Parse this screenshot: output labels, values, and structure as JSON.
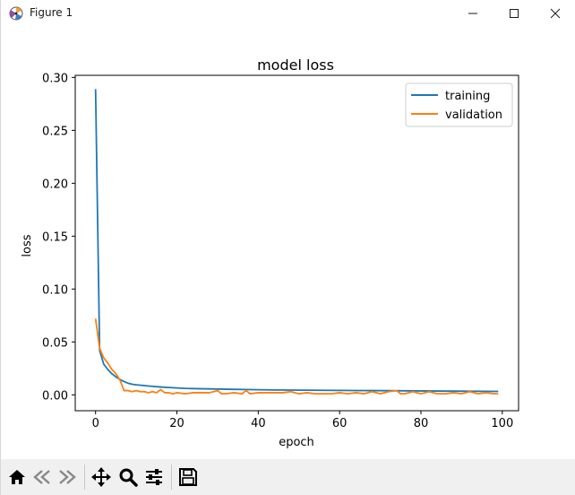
{
  "window": {
    "title": "Figure 1",
    "icons": {
      "app": "matplotlib-figure-icon",
      "minimize": "minimize-icon",
      "maximize": "maximize-icon",
      "close": "close-icon"
    }
  },
  "toolbar": {
    "buttons": [
      {
        "name": "home-button",
        "icon": "home-icon"
      },
      {
        "name": "back-button",
        "icon": "back-arrow-icon"
      },
      {
        "name": "forward-button",
        "icon": "forward-arrow-icon"
      },
      {
        "name": "pan-button",
        "icon": "move-icon"
      },
      {
        "name": "zoom-button",
        "icon": "magnifier-icon"
      },
      {
        "name": "configure-subplots-button",
        "icon": "sliders-icon"
      },
      {
        "name": "save-button",
        "icon": "save-icon"
      }
    ]
  },
  "colors": {
    "training": "#1f77b4",
    "validation": "#ff7f0e"
  },
  "chart_data": {
    "type": "line",
    "title": "model loss",
    "xlabel": "epoch",
    "ylabel": "loss",
    "xlim": [
      -5,
      104
    ],
    "ylim": [
      -0.015,
      0.302
    ],
    "xticks": [
      0,
      20,
      40,
      60,
      80,
      100
    ],
    "xtick_labels": [
      "0",
      "20",
      "40",
      "60",
      "80",
      "100"
    ],
    "yticks": [
      0.0,
      0.05,
      0.1,
      0.15,
      0.2,
      0.25,
      0.3
    ],
    "ytick_labels": [
      "0.00",
      "0.05",
      "0.10",
      "0.15",
      "0.20",
      "0.25",
      "0.30"
    ],
    "grid": false,
    "legend_position": "top-right",
    "series": [
      {
        "name": "training",
        "x": [
          0,
          1,
          2,
          3,
          4,
          5,
          6,
          7,
          8,
          9,
          10,
          12,
          14,
          16,
          18,
          20,
          22,
          25,
          28,
          31,
          34,
          37,
          40,
          44,
          48,
          52,
          56,
          60,
          64,
          68,
          72,
          76,
          80,
          84,
          88,
          92,
          96,
          99
        ],
        "y": [
          0.289,
          0.042,
          0.029,
          0.024,
          0.02,
          0.017,
          0.0145,
          0.0125,
          0.011,
          0.01,
          0.0095,
          0.0087,
          0.008,
          0.0074,
          0.0069,
          0.0065,
          0.0061,
          0.0058,
          0.0056,
          0.0054,
          0.0052,
          0.005,
          0.0048,
          0.0046,
          0.0045,
          0.0044,
          0.0043,
          0.0042,
          0.0041,
          0.004,
          0.0039,
          0.0038,
          0.0037,
          0.0036,
          0.0035,
          0.0034,
          0.0033,
          0.0032
        ]
      },
      {
        "name": "validation",
        "x": [
          0,
          1,
          2,
          3,
          4,
          5,
          6,
          7,
          8,
          9,
          10,
          11,
          12,
          13,
          14,
          15,
          16,
          17,
          18,
          19,
          20,
          22,
          24,
          26,
          28,
          30,
          31,
          32,
          34,
          36,
          37,
          38,
          40,
          42,
          44,
          46,
          48,
          50,
          52,
          54,
          56,
          58,
          60,
          62,
          64,
          66,
          68,
          70,
          72,
          74,
          75,
          76,
          78,
          80,
          82,
          84,
          86,
          88,
          90,
          92,
          94,
          96,
          98,
          99
        ],
        "y": [
          0.072,
          0.044,
          0.035,
          0.03,
          0.024,
          0.02,
          0.014,
          0.004,
          0.004,
          0.003,
          0.004,
          0.003,
          0.003,
          0.002,
          0.003,
          0.002,
          0.005,
          0.002,
          0.002,
          0.001,
          0.002,
          0.001,
          0.002,
          0.002,
          0.002,
          0.004,
          0.001,
          0.001,
          0.002,
          0.001,
          0.004,
          0.001,
          0.002,
          0.002,
          0.002,
          0.002,
          0.003,
          0.001,
          0.002,
          0.001,
          0.001,
          0.001,
          0.002,
          0.001,
          0.002,
          0.001,
          0.003,
          0.001,
          0.003,
          0.004,
          0.001,
          0.001,
          0.003,
          0.001,
          0.003,
          0.001,
          0.001,
          0.002,
          0.001,
          0.003,
          0.001,
          0.002,
          0.001,
          0.001
        ]
      }
    ]
  }
}
